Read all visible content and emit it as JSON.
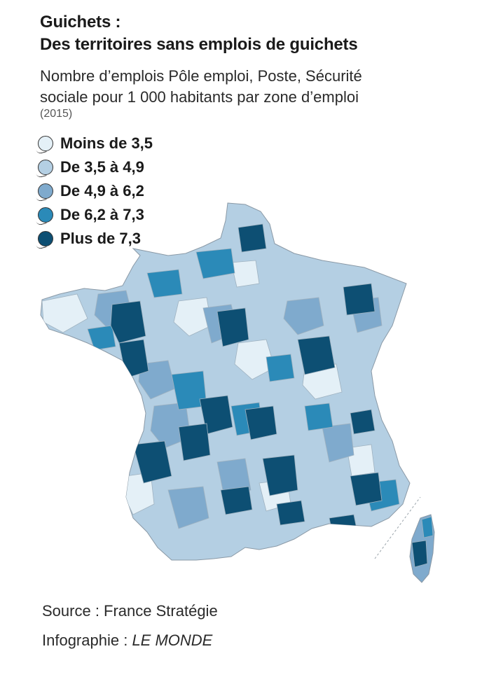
{
  "title_line1": "Guichets :",
  "title_line2": "Des territoires sans emplois de guichets",
  "subtitle_line1": "Nombre d’emplois Pôle emploi, Poste, Sécurité",
  "subtitle_line2": "sociale pour 1 000 habitants par zone d’emploi",
  "year": "(2015)",
  "legend": [
    {
      "label": "Moins de 3,5",
      "color": "#e4f0f7"
    },
    {
      "label": "De 3,5 à 4,9",
      "color": "#b4cfe3"
    },
    {
      "label": "De 4,9 à 6,2",
      "color": "#7faacd"
    },
    {
      "label": "De 6,2 à 7,3",
      "color": "#2b8ab8"
    },
    {
      "label": "Plus de 7,3",
      "color": "#0d4f73"
    }
  ],
  "source": "Source : France Stratégie",
  "credit_prefix": "Infographie : ",
  "credit_brand": "LE MONDE"
}
